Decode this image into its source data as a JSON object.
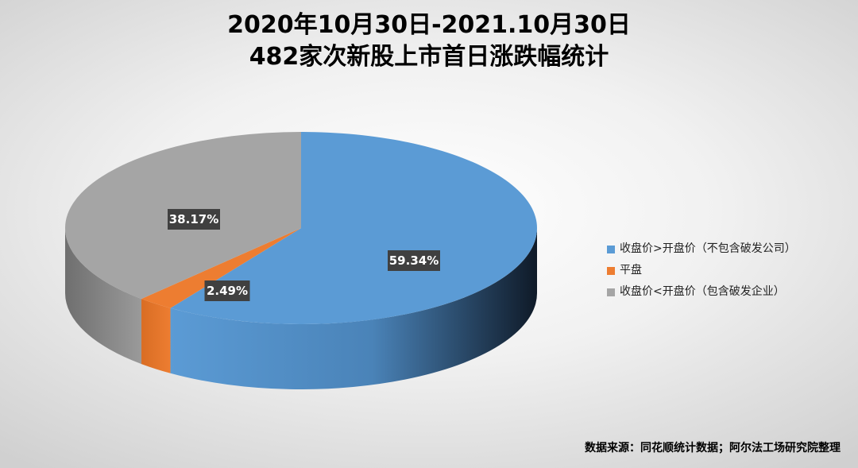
{
  "chart_data": {
    "type": "pie",
    "style": "3d",
    "title_line1": "2020年10月30日-2021.10月30日",
    "title_line2": "482家次新股上市首日涨跌幅统计",
    "slices": [
      {
        "name": "收盘价>开盘价（不包含破发公司）",
        "value": 59.34,
        "label": "59.34%",
        "color": "#5b9bd5"
      },
      {
        "name": "平盘",
        "value": 2.49,
        "label": "2.49%",
        "color": "#ed7d31"
      },
      {
        "name": "收盘价<开盘价（包含破发企业）",
        "value": 38.17,
        "label": "38.17%",
        "color": "#a5a5a5"
      }
    ],
    "legend_position": "right",
    "source_note": "数据来源：同花顺统计数据；阿尔法工场研究院整理"
  }
}
